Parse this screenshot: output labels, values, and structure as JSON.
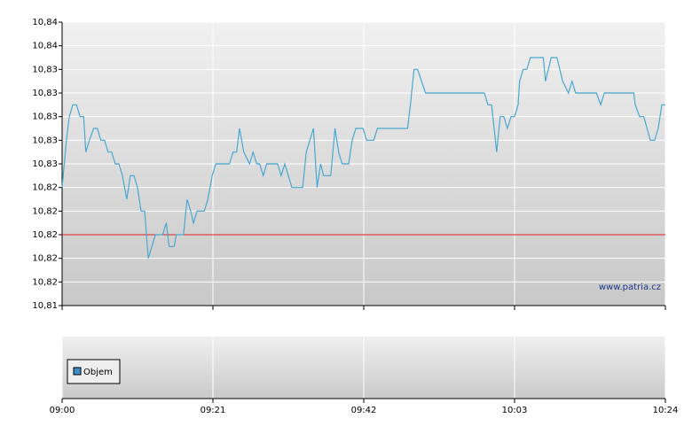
{
  "chart_data": {
    "type": "line",
    "series": [
      {
        "name": "Price",
        "color": "#4aa8d0",
        "x": [
          540.0,
          540.6,
          541.0,
          541.5,
          542.0,
          542.5,
          543.0,
          543.3,
          543.8,
          544.4,
          544.9,
          545.4,
          545.9,
          546.4,
          546.9,
          547.4,
          547.9,
          548.4,
          549.0,
          549.5,
          550.0,
          550.5,
          551.0,
          551.5,
          552.0,
          552.5,
          553.0,
          553.5,
          554.0,
          554.5,
          554.9,
          555.6,
          555.9,
          556.9,
          557.4,
          557.9,
          558.3,
          558.8,
          559.3,
          559.8,
          560.3,
          560.9,
          561.4,
          561.9,
          562.4,
          562.9,
          563.3,
          563.8,
          564.3,
          564.7,
          565.3,
          566.1,
          566.6,
          567.1,
          567.5,
          568.0,
          568.5,
          569.0,
          569.5,
          570.0,
          570.5,
          571.0,
          571.5,
          572.0,
          572.5,
          573.5,
          574.0,
          574.5,
          575.0,
          575.5,
          576.0,
          576.4,
          577.4,
          578.0,
          578.5,
          579.0,
          579.9,
          580.4,
          580.9,
          581.9,
          582.4,
          583.4,
          583.9,
          588.1,
          588.5,
          589.0,
          589.5,
          590.6,
          598.8,
          599.3,
          599.8,
          600.5,
          601.0,
          601.5,
          602.0,
          602.5,
          603.0,
          603.5,
          603.7,
          604.2,
          604.7,
          605.2,
          607.0,
          607.3,
          608.1,
          608.9,
          609.7,
          610.5,
          611.0,
          611.5,
          614.4,
          615.0,
          615.5,
          619.6,
          619.8,
          620.4,
          621.0,
          621.9,
          622.5,
          623.0,
          623.5,
          624.0
        ],
        "values": [
          10.824,
          10.828,
          10.83,
          10.831,
          10.831,
          10.83,
          10.83,
          10.827,
          10.828,
          10.829,
          10.829,
          10.828,
          10.828,
          10.827,
          10.827,
          10.826,
          10.826,
          10.825,
          10.823,
          10.825,
          10.825,
          10.824,
          10.822,
          10.822,
          10.818,
          10.819,
          10.82,
          10.82,
          10.82,
          10.821,
          10.819,
          10.819,
          10.82,
          10.82,
          10.823,
          10.822,
          10.821,
          10.822,
          10.822,
          10.822,
          10.823,
          10.825,
          10.826,
          10.826,
          10.826,
          10.826,
          10.826,
          10.827,
          10.827,
          10.829,
          10.827,
          10.826,
          10.827,
          10.826,
          10.826,
          10.825,
          10.826,
          10.826,
          10.826,
          10.826,
          10.825,
          10.826,
          10.825,
          10.824,
          10.824,
          10.824,
          10.827,
          10.828,
          10.829,
          10.824,
          10.826,
          10.825,
          10.825,
          10.829,
          10.827,
          10.826,
          10.826,
          10.828,
          10.829,
          10.829,
          10.828,
          10.828,
          10.829,
          10.829,
          10.831,
          10.834,
          10.834,
          10.832,
          10.832,
          10.831,
          10.831,
          10.827,
          10.83,
          10.83,
          10.829,
          10.83,
          10.83,
          10.831,
          10.833,
          10.834,
          10.834,
          10.835,
          10.835,
          10.833,
          10.835,
          10.835,
          10.833,
          10.832,
          10.833,
          10.832,
          10.832,
          10.831,
          10.832,
          10.832,
          10.831,
          10.83,
          10.83,
          10.828,
          10.828,
          10.829,
          10.831,
          10.831
        ]
      }
    ],
    "reference_line": 10.82,
    "reference_color": "#e02020",
    "volume_series": {
      "name": "Objem",
      "color": "#3f8fc4"
    },
    "watermark": "www.patria.cz",
    "xlim": [
      540,
      624
    ],
    "xticks": [
      {
        "value": 540,
        "label": "09:00"
      },
      {
        "value": 561,
        "label": "09:21"
      },
      {
        "value": 582,
        "label": "09:42"
      },
      {
        "value": 603,
        "label": "10:03"
      },
      {
        "value": 624,
        "label": "10:24"
      }
    ],
    "ylim": [
      10.814,
      10.838
    ],
    "yticks": [
      {
        "value": 10.814,
        "label": "10,81"
      },
      {
        "value": 10.816,
        "label": "10,82"
      },
      {
        "value": 10.818,
        "label": "10,82"
      },
      {
        "value": 10.82,
        "label": "10,82"
      },
      {
        "value": 10.822,
        "label": "10,82"
      },
      {
        "value": 10.824,
        "label": "10,82"
      },
      {
        "value": 10.826,
        "label": "10,83"
      },
      {
        "value": 10.828,
        "label": "10,83"
      },
      {
        "value": 10.83,
        "label": "10,83"
      },
      {
        "value": 10.832,
        "label": "10,83"
      },
      {
        "value": 10.834,
        "label": "10,83"
      },
      {
        "value": 10.836,
        "label": "10,84"
      },
      {
        "value": 10.838,
        "label": "10,84"
      }
    ],
    "grid": true
  }
}
